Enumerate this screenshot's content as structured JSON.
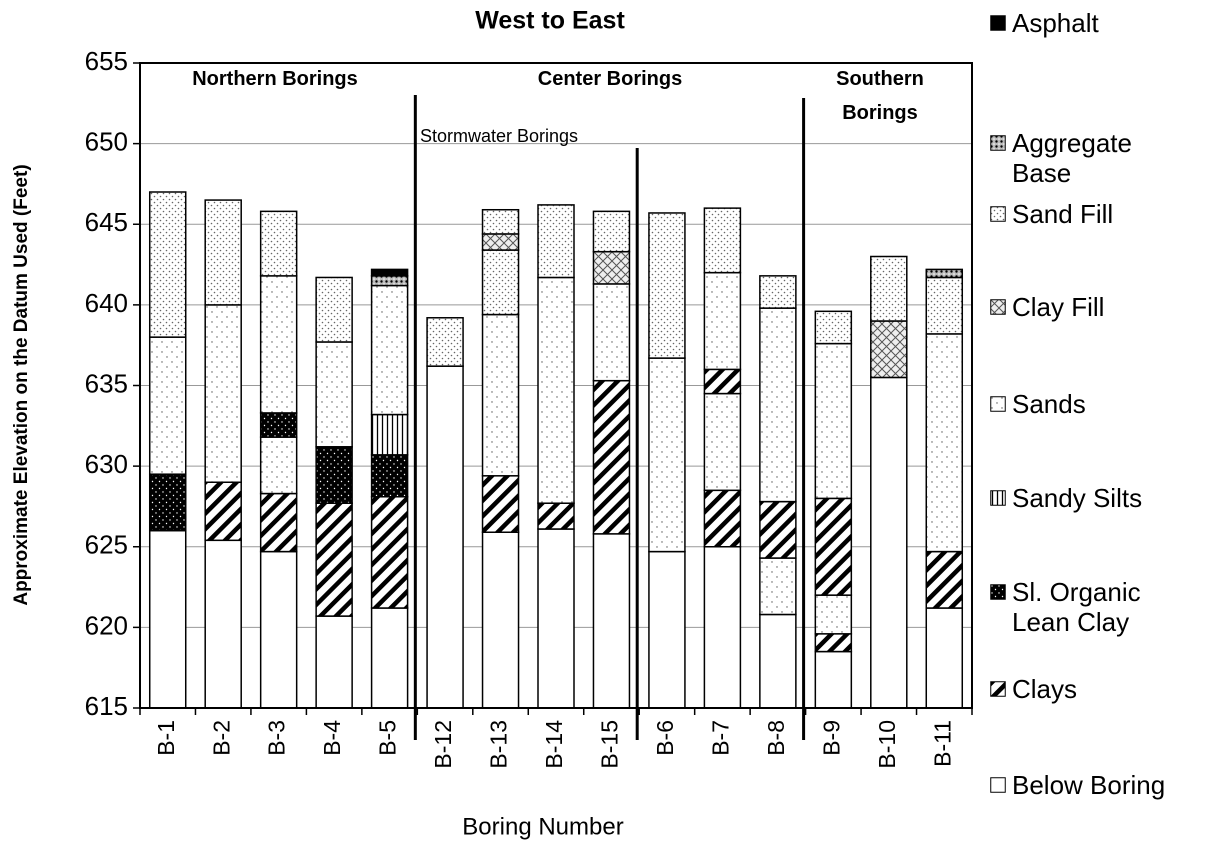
{
  "chart_data": {
    "type": "stacked-layers",
    "title": "West to East",
    "x_label": "Boring Number",
    "y_label": "Approximate Elevation on the Datum Used (Feet)",
    "ylim": [
      615,
      655
    ],
    "yticks": [
      615,
      620,
      625,
      630,
      635,
      640,
      645,
      650,
      655
    ],
    "grid": true,
    "annotations": [
      "Northern Borings",
      "Center Borings",
      "Southern Borings",
      "Stormwater Borings"
    ],
    "series": [
      {
        "name": "Asphalt"
      },
      {
        "name": "Aggregate Base"
      },
      {
        "name": "Sand Fill"
      },
      {
        "name": "Clay Fill"
      },
      {
        "name": "Sands"
      },
      {
        "name": "Sandy Silts"
      },
      {
        "name": "Sl. Organic Lean Clay"
      },
      {
        "name": "Clays"
      },
      {
        "name": "Below Boring"
      }
    ],
    "categories": [
      "B-1",
      "B-2",
      "B-3",
      "B-4",
      "B-5",
      "B-12",
      "B-13",
      "B-14",
      "B-15",
      "B-6",
      "B-7",
      "B-8",
      "B-9",
      "B-10",
      "B-11"
    ],
    "layers": [
      [
        {
          "series": 8,
          "value": 11
        },
        {
          "series": 6,
          "value": 3.5
        },
        {
          "series": 4,
          "value": 8.5
        },
        {
          "series": 2,
          "value": 9
        }
      ],
      [
        {
          "series": 8,
          "value": 10.4
        },
        {
          "series": 7,
          "value": 3.6
        },
        {
          "series": 4,
          "value": 11
        },
        {
          "series": 2,
          "value": 6.5
        }
      ],
      [
        {
          "series": 8,
          "value": 9.7
        },
        {
          "series": 7,
          "value": 3.6
        },
        {
          "series": 4,
          "value": 3.5
        },
        {
          "series": 6,
          "value": 1.5
        },
        {
          "series": 4,
          "value": 8.5
        },
        {
          "series": 2,
          "value": 4
        }
      ],
      [
        {
          "series": 8,
          "value": 5.7
        },
        {
          "series": 7,
          "value": 7
        },
        {
          "series": 6,
          "value": 3.5
        },
        {
          "series": 4,
          "value": 6.5
        },
        {
          "series": 2,
          "value": 4
        }
      ],
      [
        {
          "series": 8,
          "value": 6.2
        },
        {
          "series": 7,
          "value": 6.9
        },
        {
          "series": 6,
          "value": 2.6
        },
        {
          "series": 5,
          "value": 2.5
        },
        {
          "series": 4,
          "value": 8
        },
        {
          "series": 1,
          "value": 0.6
        },
        {
          "series": 0,
          "value": 0.4
        }
      ],
      [
        {
          "series": 8,
          "value": 21.2
        },
        {
          "series": 2,
          "value": 3
        }
      ],
      [
        {
          "series": 8,
          "value": 10.9
        },
        {
          "series": 7,
          "value": 3.5
        },
        {
          "series": 4,
          "value": 10
        },
        {
          "series": 2,
          "value": 4
        },
        {
          "series": 3,
          "value": 1
        },
        {
          "series": 2,
          "value": 1.5
        }
      ],
      [
        {
          "series": 8,
          "value": 11.1
        },
        {
          "series": 7,
          "value": 1.6
        },
        {
          "series": 4,
          "value": 14
        },
        {
          "series": 2,
          "value": 4.5
        }
      ],
      [
        {
          "series": 8,
          "value": 10.8
        },
        {
          "series": 7,
          "value": 9.5
        },
        {
          "series": 4,
          "value": 6
        },
        {
          "series": 3,
          "value": 2
        },
        {
          "series": 2,
          "value": 2.5
        }
      ],
      [
        {
          "series": 8,
          "value": 9.7
        },
        {
          "series": 4,
          "value": 12
        },
        {
          "series": 2,
          "value": 9
        }
      ],
      [
        {
          "series": 8,
          "value": 10
        },
        {
          "series": 7,
          "value": 3.5
        },
        {
          "series": 4,
          "value": 6
        },
        {
          "series": 7,
          "value": 1.5
        },
        {
          "series": 4,
          "value": 6
        },
        {
          "series": 2,
          "value": 4
        }
      ],
      [
        {
          "series": 8,
          "value": 5.8
        },
        {
          "series": 4,
          "value": 3.5
        },
        {
          "series": 7,
          "value": 3.5
        },
        {
          "series": 4,
          "value": 12
        },
        {
          "series": 2,
          "value": 2
        }
      ],
      [
        {
          "series": 8,
          "value": 3.5
        },
        {
          "series": 7,
          "value": 1.1
        },
        {
          "series": 4,
          "value": 2.4
        },
        {
          "series": 7,
          "value": 6
        },
        {
          "series": 4,
          "value": 9.6
        },
        {
          "series": 2,
          "value": 2
        }
      ],
      [
        {
          "series": 8,
          "value": 20.5
        },
        {
          "series": 3,
          "value": 3.5
        },
        {
          "series": 2,
          "value": 4
        }
      ],
      [
        {
          "series": 8,
          "value": 6.2
        },
        {
          "series": 7,
          "value": 3.5
        },
        {
          "series": 4,
          "value": 13.5
        },
        {
          "series": 2,
          "value": 3.5
        },
        {
          "series": 1,
          "value": 0.5
        }
      ]
    ]
  }
}
